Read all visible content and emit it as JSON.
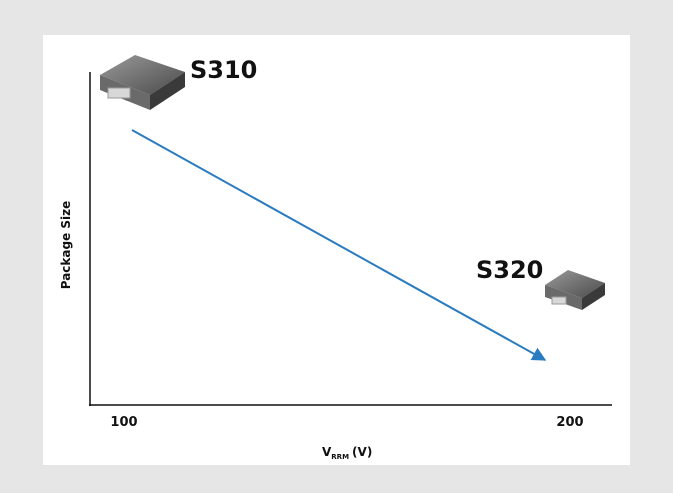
{
  "axes": {
    "y_label": "Package Size",
    "x_label": {
      "base": "V",
      "subscript": "RRM",
      "unit": "(V)"
    },
    "x_ticks": [
      "100",
      "200"
    ]
  },
  "parts": [
    {
      "label": "S310"
    },
    {
      "label": "S320"
    }
  ]
}
